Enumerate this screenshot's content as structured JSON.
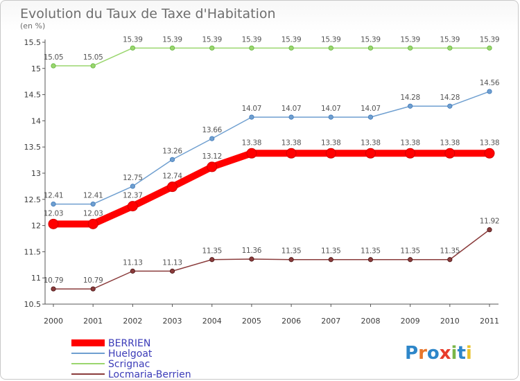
{
  "chart_data": {
    "type": "line",
    "title": "Evolution du Taux de Taxe d'Habitation",
    "subtitle": "(en %)",
    "x": [
      "2000",
      "2001",
      "2002",
      "2003",
      "2004",
      "2005",
      "2006",
      "2007",
      "2008",
      "2009",
      "2010",
      "2011"
    ],
    "ylim": [
      10.5,
      15.5
    ],
    "yticks": [
      "10.5",
      "11",
      "11.5",
      "12",
      "12.5",
      "13",
      "13.5",
      "14",
      "14.5",
      "15",
      "15.5"
    ],
    "grid": false,
    "legend_position": "bottom-left",
    "series": [
      {
        "name": "BERRIEN",
        "color": "#ff0000",
        "values": [
          12.03,
          12.03,
          12.37,
          12.74,
          13.12,
          13.38,
          13.38,
          13.38,
          13.38,
          13.38,
          13.38,
          13.38
        ],
        "labels": [
          "12.03",
          "12.03",
          "12.37",
          "12.74",
          "13.12",
          "13.38",
          "13.38",
          "13.38",
          "13.38",
          "13.38",
          "13.38",
          "13.38"
        ]
      },
      {
        "name": "Huelgoat",
        "color": "#6f9fd0",
        "values": [
          12.41,
          12.41,
          12.75,
          13.26,
          13.66,
          14.07,
          14.07,
          14.07,
          14.07,
          14.28,
          14.28,
          14.56
        ],
        "labels": [
          "12.41",
          "12.41",
          "12.75",
          "13.26",
          "13.66",
          "14.07",
          "14.07",
          "14.07",
          "14.07",
          "14.28",
          "14.28",
          "14.56"
        ]
      },
      {
        "name": "Scrignac",
        "color": "#9ad66e",
        "values": [
          15.05,
          15.05,
          15.39,
          15.39,
          15.39,
          15.39,
          15.39,
          15.39,
          15.39,
          15.39,
          15.39,
          15.39
        ],
        "labels": [
          "15.05",
          "15.05",
          "15.39",
          "15.39",
          "15.39",
          "15.39",
          "15.39",
          "15.39",
          "15.39",
          "15.39",
          "15.39",
          "15.39"
        ]
      },
      {
        "name": "Locmaria-Berrien",
        "color": "#8a3b3b",
        "values": [
          10.79,
          10.79,
          11.13,
          11.13,
          11.35,
          11.36,
          11.35,
          11.35,
          11.35,
          11.35,
          11.35,
          11.92
        ],
        "labels": [
          "10.79",
          "10.79",
          "11.13",
          "11.13",
          "11.35",
          "11.36",
          "11.35",
          "11.35",
          "11.35",
          "11.35",
          "11.35",
          "11.92"
        ]
      }
    ]
  },
  "logo": {
    "text": "Proxiti"
  }
}
